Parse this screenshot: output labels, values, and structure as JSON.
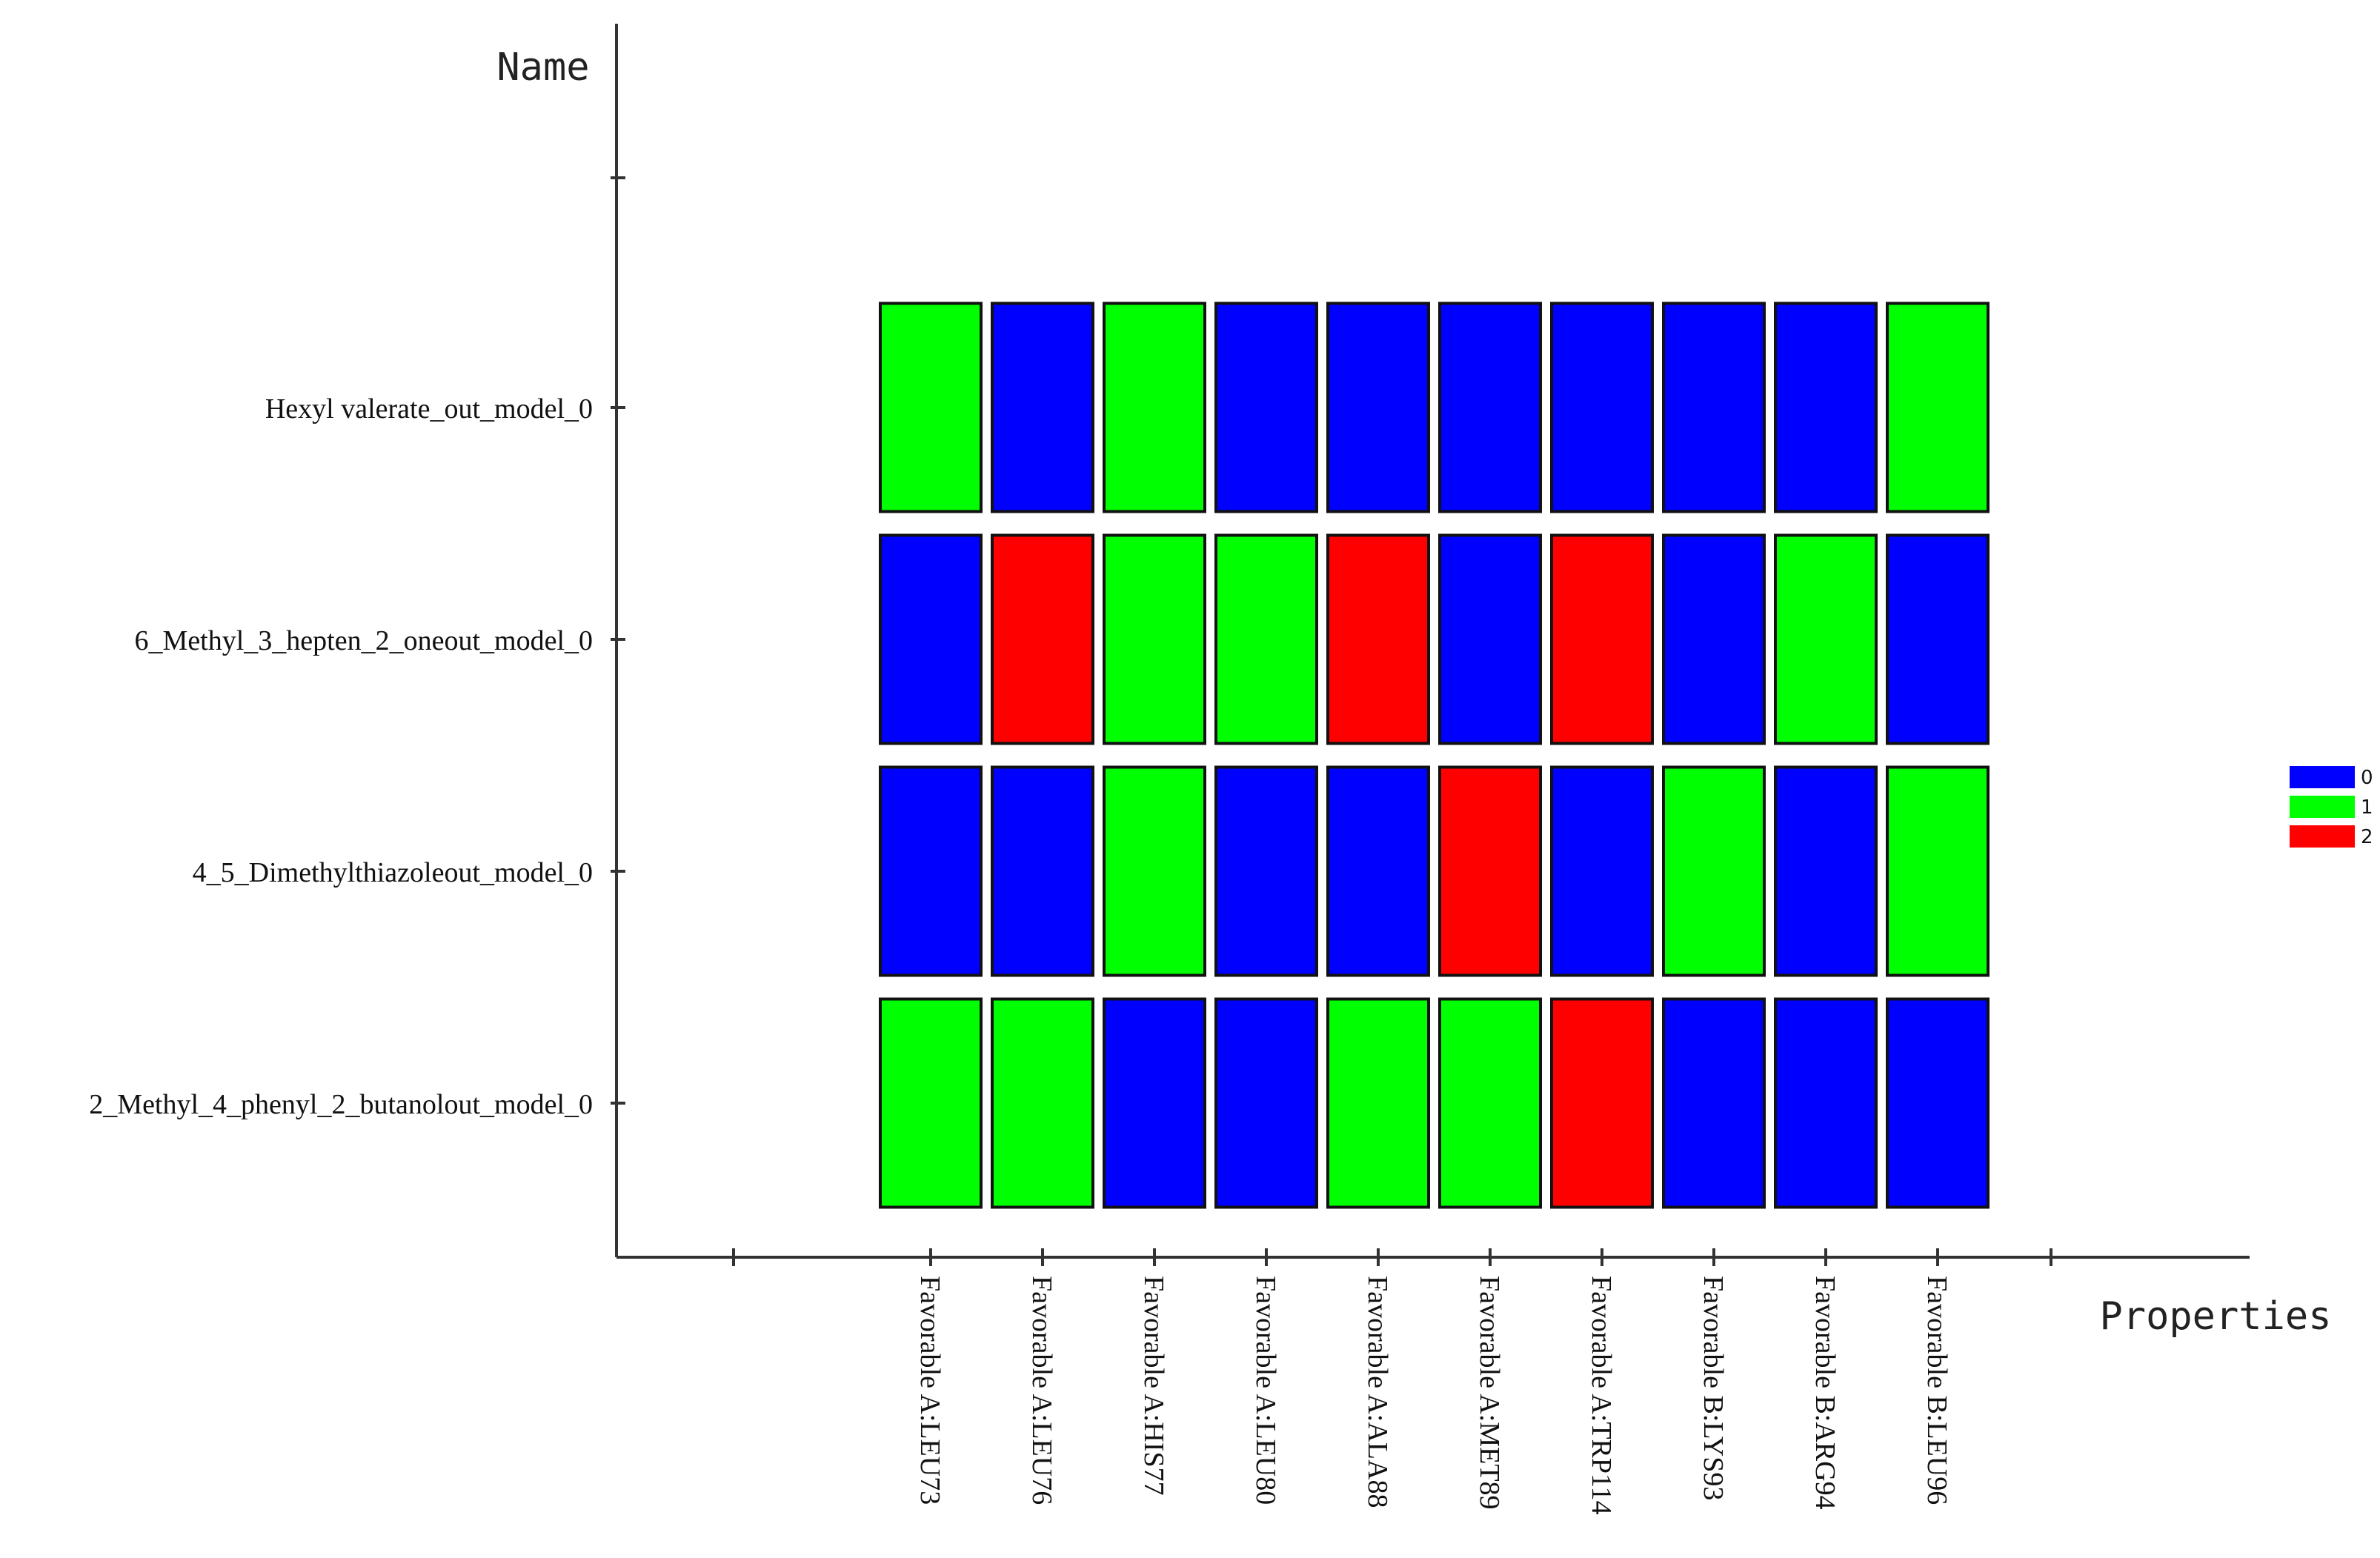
{
  "chart_data": {
    "type": "heatmap",
    "y_axis_label": "Name",
    "x_axis_label": "Properties",
    "rows": [
      "Hexyl valerate_out_model_0",
      "6_Methyl_3_hepten_2_oneout_model_0",
      "4_5_Dimethylthiazoleout_model_0",
      "2_Methyl_4_phenyl_2_butanolout_model_0"
    ],
    "columns": [
      "Favorable A:LEU73",
      "Favorable A:LEU76",
      "Favorable A:HIS77",
      "Favorable A:LEU80",
      "Favorable A:ALA88",
      "Favorable A:MET89",
      "Favorable A:TRP114",
      "Favorable B:LYS93",
      "Favorable B:ARG94",
      "Favorable B:LEU96"
    ],
    "values": [
      [
        1,
        0,
        1,
        0,
        0,
        0,
        0,
        0,
        0,
        1
      ],
      [
        0,
        2,
        1,
        1,
        2,
        0,
        2,
        0,
        1,
        0
      ],
      [
        0,
        0,
        1,
        0,
        0,
        2,
        0,
        1,
        0,
        1
      ],
      [
        1,
        1,
        0,
        0,
        1,
        1,
        2,
        0,
        0,
        0
      ]
    ],
    "legend": [
      {
        "value": 0,
        "label": "0",
        "color": "#0000ff"
      },
      {
        "value": 1,
        "label": "1",
        "color": "#00ff00"
      },
      {
        "value": 2,
        "label": "2",
        "color": "#ff0000"
      }
    ],
    "legend_position": "right"
  }
}
